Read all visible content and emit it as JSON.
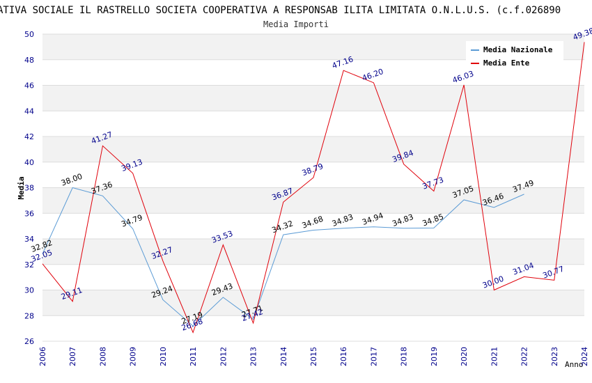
{
  "chart_data": {
    "type": "line",
    "title": "ATIVA SOCIALE IL RASTRELLO SOCIETA COOPERATIVA A RESPONSAB ILITA LIMITATA O.N.L.U.S. (c.f.026890",
    "subtitle": "Media Importi",
    "xlabel": "Anno",
    "ylabel": "Media",
    "ylim": [
      26,
      50
    ],
    "yticks": [
      26,
      28,
      30,
      32,
      34,
      36,
      38,
      40,
      42,
      44,
      46,
      48,
      50
    ],
    "grid": true,
    "legend_position": "top-right",
    "categories": [
      "2006",
      "2007",
      "2008",
      "2009",
      "2010",
      "2011",
      "2012",
      "2013",
      "2014",
      "2015",
      "2016",
      "2017",
      "2018",
      "2019",
      "2020",
      "2021",
      "2022",
      "2023",
      "2024"
    ],
    "series": [
      {
        "name": "Media Nazionale",
        "color": "#5b9bd5",
        "label_color": "#000000",
        "values": [
          32.82,
          38.0,
          37.36,
          34.79,
          29.24,
          27.19,
          29.43,
          27.71,
          34.32,
          34.68,
          34.83,
          34.94,
          34.83,
          34.85,
          37.05,
          36.46,
          37.49,
          null,
          null
        ],
        "labels": [
          "32.82",
          "38.00",
          "37.36",
          "34.79",
          "29.24",
          "27.19",
          "29.43",
          "27.71",
          "34.32",
          "34.68",
          "34.83",
          "34.94",
          "34.83",
          "34.85",
          "37.05",
          "36.46",
          "37.49",
          "",
          ""
        ]
      },
      {
        "name": "Media Ente",
        "color": "#e0000a",
        "label_color": "#00008b",
        "values": [
          32.05,
          29.11,
          41.27,
          39.13,
          32.27,
          26.68,
          33.53,
          27.42,
          36.87,
          38.79,
          47.16,
          46.2,
          39.84,
          37.73,
          46.03,
          30.0,
          31.04,
          30.77,
          49.38
        ],
        "labels": [
          "32.05",
          "29.11",
          "41.27",
          "39.13",
          "32.27",
          "26.68",
          "33.53",
          "27.42",
          "36.87",
          "38.79",
          "47.16",
          "46.20",
          "39.84",
          "37.73",
          "46.03",
          "30.00",
          "31.04",
          "30.77",
          "49.38"
        ]
      }
    ]
  },
  "colors": {
    "axis_text": "#00008b",
    "band": "#f2f2f2",
    "gridline": "#dcdcdc"
  }
}
